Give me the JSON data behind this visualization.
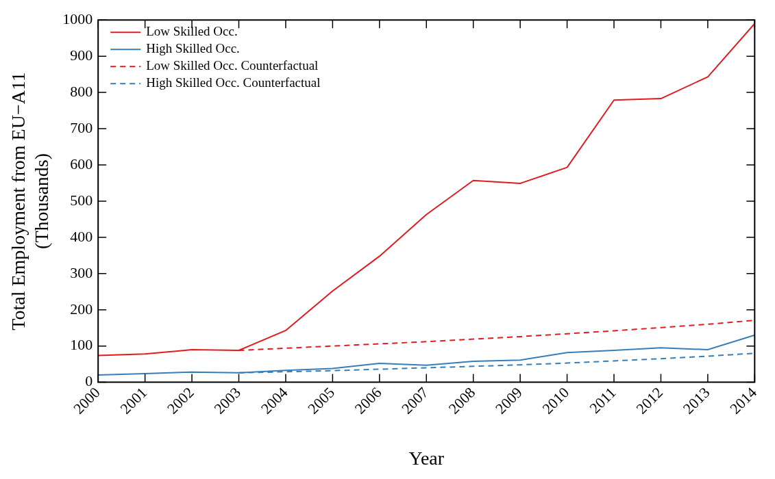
{
  "chart_data": {
    "type": "line",
    "xlabel": "Year",
    "ylabel": "Total Employment from EU−A11 (Thousands)",
    "x": [
      2000,
      2001,
      2002,
      2003,
      2004,
      2005,
      2006,
      2007,
      2008,
      2009,
      2010,
      2011,
      2012,
      2013,
      2014
    ],
    "xlim": [
      2000,
      2014
    ],
    "xticks": [
      2000,
      2001,
      2002,
      2003,
      2004,
      2005,
      2006,
      2007,
      2008,
      2009,
      2010,
      2011,
      2012,
      2013,
      2014
    ],
    "ylim": [
      0,
      1000
    ],
    "yticks": [
      0,
      100,
      200,
      300,
      400,
      500,
      600,
      700,
      800,
      900,
      1000
    ],
    "grid": false,
    "legend": "top left",
    "marker": "none",
    "series": [
      {
        "name": "Low Skilled Occ.",
        "color": "#e41a1c",
        "line_style": "solid",
        "values": [
          74,
          78,
          90,
          88,
          143,
          252,
          348,
          463,
          557,
          549,
          593,
          779,
          783,
          843,
          990
        ]
      },
      {
        "name": "High Skilled Occ.",
        "color": "#377eb8",
        "line_style": "solid",
        "values": [
          20,
          24,
          28,
          26,
          33,
          38,
          52,
          47,
          58,
          61,
          82,
          88,
          95,
          90,
          130
        ]
      },
      {
        "name": "Low Skilled Occ. Counterfactual",
        "color": "#e41a1c",
        "line_style": "dashed",
        "values": [
          null,
          null,
          null,
          88,
          94,
          100,
          106,
          112,
          119,
          126,
          134,
          142,
          151,
          160,
          171
        ]
      },
      {
        "name": "High Skilled Occ. Counterfactual",
        "color": "#377eb8",
        "line_style": "dashed",
        "values": [
          null,
          null,
          null,
          26,
          29,
          32,
          36,
          40,
          44,
          48,
          53,
          59,
          65,
          72,
          80
        ]
      }
    ]
  }
}
